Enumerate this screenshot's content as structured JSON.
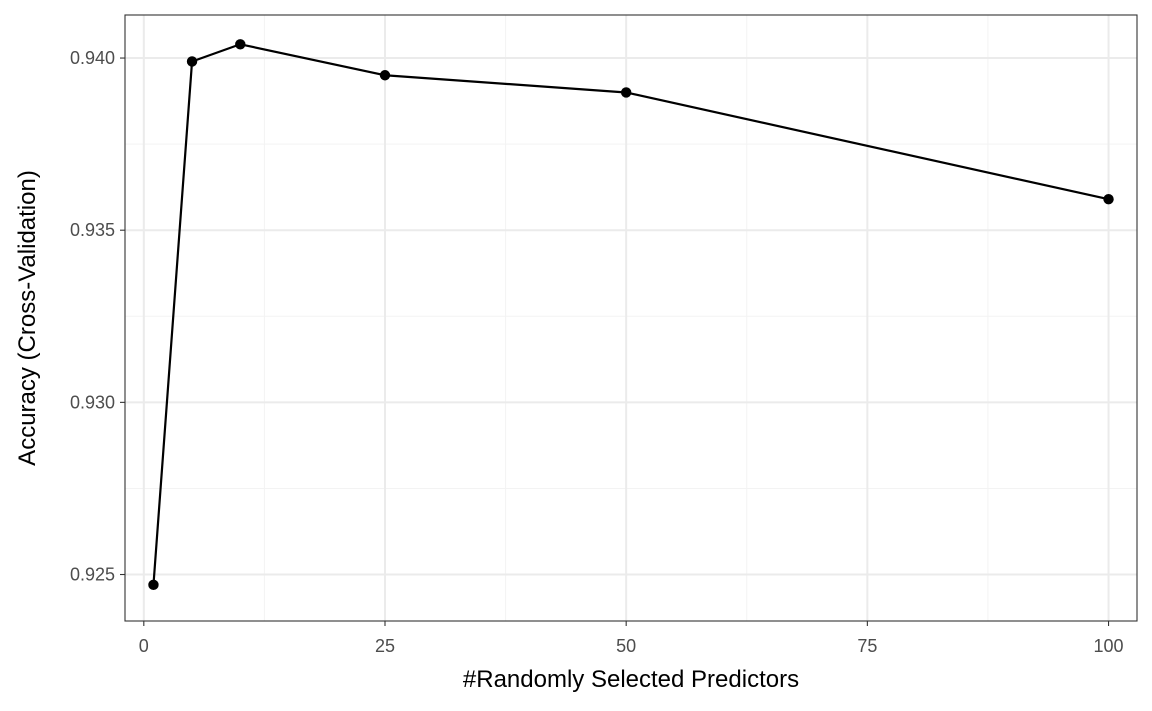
{
  "chart_data": {
    "type": "line",
    "title": "",
    "xlabel": "#Randomly Selected Predictors",
    "ylabel": "Accuracy (Cross-Validation)",
    "x": [
      1,
      5,
      10,
      25,
      50,
      100
    ],
    "series": [
      {
        "values": [
          0.9247,
          0.9399,
          0.9404,
          0.9395,
          0.939,
          0.9359
        ]
      }
    ],
    "xlim": [
      -1.95,
      102.95
    ],
    "ylim": [
      0.92365,
      0.94125
    ],
    "xticks": [
      0,
      25,
      50,
      75,
      100
    ],
    "xtick_labels": [
      "0",
      "25",
      "50",
      "75",
      "100"
    ],
    "yticks": [
      0.925,
      0.93,
      0.935,
      0.94
    ],
    "ytick_labels": [
      "0.925",
      "0.930",
      "0.935",
      "0.940"
    ],
    "grid": true,
    "legend": "none",
    "colors": {
      "line": "#000000",
      "point": "#000000",
      "grid_major": "#ebebeb",
      "grid_minor": "#f3f3f3",
      "panel_border": "#333333",
      "tick_text": "#4d4d4d"
    }
  }
}
